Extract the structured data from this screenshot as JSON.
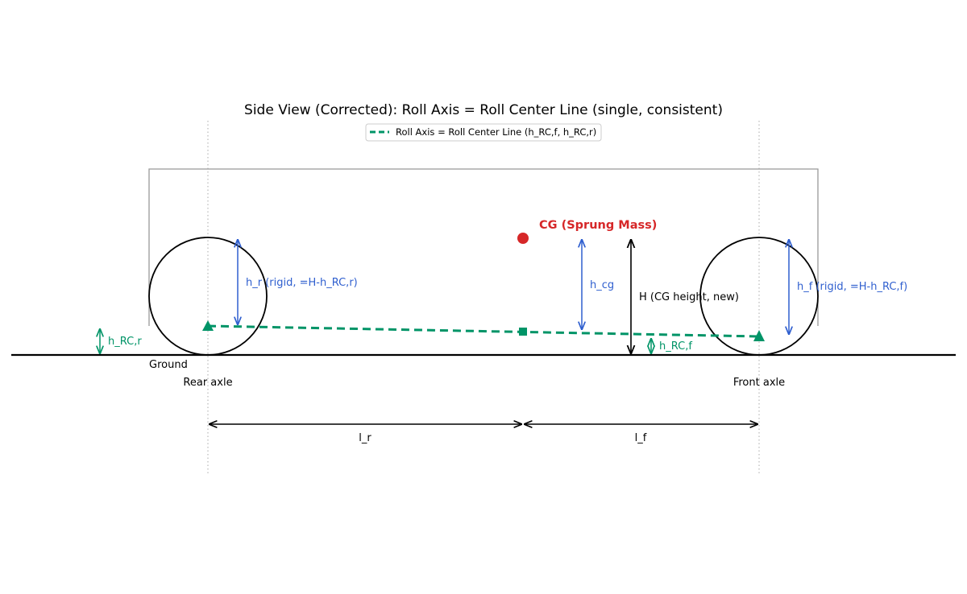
{
  "title": "Side View (Corrected): Roll Axis = Roll Center Line (single, consistent)",
  "legend": {
    "label": "Roll Axis = Roll Center Line (h_RC,f, h_RC,r)"
  },
  "labels": {
    "cg": "CG (Sprung Mass)",
    "ground": "Ground",
    "rear_axle": "Rear axle",
    "front_axle": "Front axle",
    "h_rc_r": "h_RC,r",
    "h_rc_f": "h_RC,f",
    "h_r": "h_r (rigid, =H-h_RC,r)",
    "h_f": "h_f (rigid, =H-h_RC,f)",
    "h_cg": "h_cg",
    "H": "H (CG height, new)",
    "l_r": "l_r",
    "l_f": "l_f"
  },
  "colors": {
    "roll_axis": "#009467",
    "cg": "#d62728",
    "heights": "#2f5fcf",
    "ink": "#000000",
    "body": "#999999",
    "guide": "#aaaaaa"
  }
}
